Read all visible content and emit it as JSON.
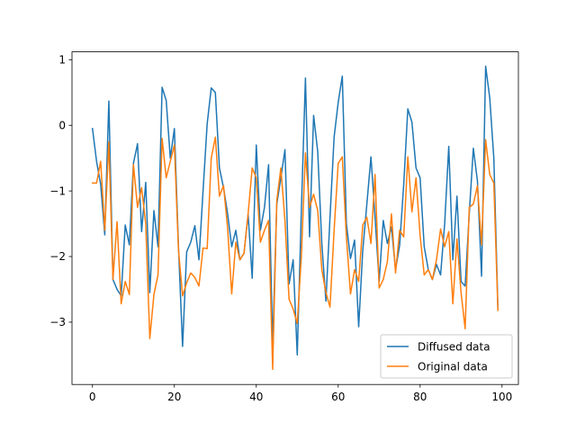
{
  "chart_data": {
    "type": "line",
    "title": "",
    "xlabel": "",
    "ylabel": "",
    "xlim": [
      -5,
      104
    ],
    "ylim": [
      -3.95,
      1.12
    ],
    "xticks": [
      0,
      20,
      40,
      60,
      80,
      100
    ],
    "yticks": [
      1,
      0,
      -1,
      -2,
      -3
    ],
    "grid": false,
    "legend_position": "lower-right",
    "series": [
      {
        "name": "Diffused data",
        "color": "#1f77b4",
        "values": [
          -0.05,
          -0.55,
          -0.9,
          -1.67,
          0.37,
          -2.35,
          -2.5,
          -2.6,
          -1.52,
          -1.82,
          -0.58,
          -0.28,
          -1.62,
          -0.87,
          -2.55,
          -1.3,
          -1.85,
          0.58,
          0.38,
          -0.5,
          -0.05,
          -1.85,
          -3.37,
          -1.93,
          -1.78,
          -1.53,
          -2.05,
          -1.0,
          0.02,
          0.57,
          0.5,
          -0.65,
          -0.95,
          -1.35,
          -1.85,
          -1.6,
          -2.05,
          -1.95,
          -1.35,
          -2.33,
          -0.3,
          -1.6,
          -1.25,
          -0.6,
          -3.37,
          -1.2,
          -0.8,
          -0.37,
          -2.42,
          -2.05,
          -3.5,
          -1.3,
          0.72,
          -1.7,
          0.15,
          -0.4,
          -1.8,
          -2.68,
          -1.4,
          -0.18,
          0.35,
          0.75,
          -1.5,
          -2.03,
          -1.75,
          -3.07,
          -1.9,
          -1.2,
          -0.48,
          -1.4,
          -2.38,
          -1.45,
          -1.8,
          -1.55,
          -2.2,
          -1.83,
          -0.9,
          0.25,
          0.05,
          -0.65,
          -0.8,
          -1.85,
          -2.2,
          -2.35,
          -2.12,
          -2.28,
          -1.5,
          -0.32,
          -2.05,
          -1.08,
          -2.38,
          -2.45,
          -1.35,
          -0.35,
          -0.85,
          -2.3,
          0.9,
          0.42,
          -0.5,
          -2.8
        ]
      },
      {
        "name": "Original data",
        "color": "#ff7f0e",
        "values": [
          -0.88,
          -0.88,
          -0.55,
          -1.6,
          -0.25,
          -2.35,
          -1.47,
          -2.72,
          -2.38,
          -2.58,
          -0.6,
          -1.25,
          -0.95,
          -1.5,
          -3.25,
          -2.58,
          -2.28,
          -0.2,
          -0.8,
          -0.55,
          -0.3,
          -1.9,
          -2.6,
          -2.4,
          -2.25,
          -2.32,
          -2.45,
          -1.87,
          -1.88,
          -0.5,
          -0.18,
          -1.08,
          -0.92,
          -1.57,
          -2.57,
          -1.78,
          -2.05,
          -1.95,
          -1.35,
          -0.65,
          -0.8,
          -1.78,
          -1.6,
          -1.45,
          -3.72,
          -1.15,
          -0.65,
          -1.45,
          -2.65,
          -2.8,
          -3.02,
          -2.0,
          -0.42,
          -1.25,
          -1.05,
          -1.3,
          -2.2,
          -2.55,
          -2.77,
          -1.6,
          -0.58,
          -0.48,
          -1.7,
          -2.57,
          -2.2,
          -2.38,
          -1.52,
          -1.4,
          -1.8,
          -0.75,
          -2.48,
          -2.35,
          -2.08,
          -1.35,
          -2.25,
          -1.6,
          -1.7,
          -0.48,
          -1.32,
          -0.8,
          -1.68,
          -2.28,
          -2.2,
          -2.35,
          -2.05,
          -1.58,
          -1.85,
          -1.62,
          -2.72,
          -1.73,
          -2.55,
          -3.1,
          -1.25,
          -1.2,
          -0.92,
          -1.82,
          -0.22,
          -0.75,
          -0.88,
          -2.82
        ]
      }
    ]
  }
}
